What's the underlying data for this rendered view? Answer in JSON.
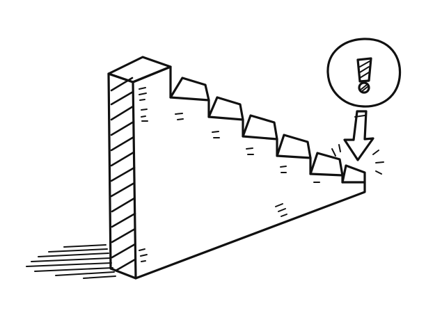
{
  "illustration": {
    "subject": "staircase-drawing",
    "icons": [
      "staircase-icon",
      "exclamation-icon",
      "down-arrow-icon"
    ],
    "colors": {
      "ink": "#111111",
      "paper": "#ffffff"
    }
  }
}
